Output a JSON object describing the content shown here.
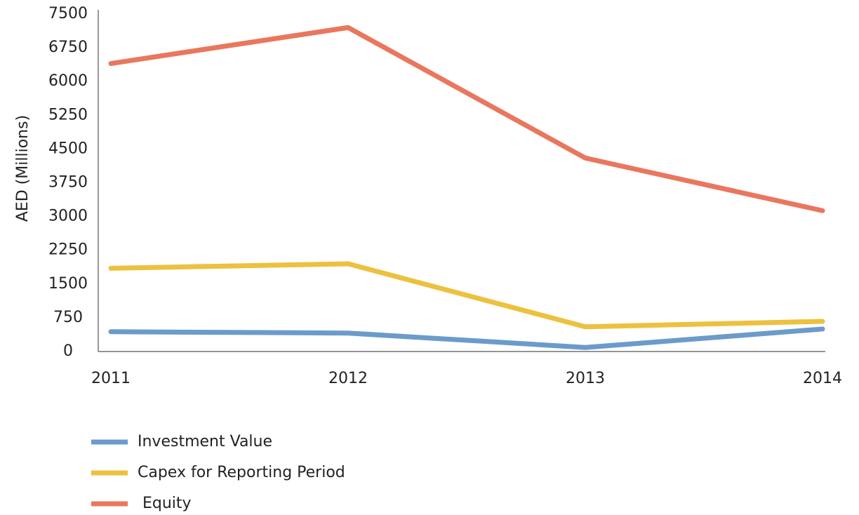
{
  "chart_data": {
    "type": "line",
    "ylabel": "AED (Millions)",
    "categories": [
      "2011",
      "2012",
      "2013",
      "2014"
    ],
    "series": [
      {
        "name": "Investment Value",
        "color": "#6b9bcb",
        "values": [
          440,
          410,
          90,
          500
        ]
      },
      {
        "name": "Capex for Reporting Period",
        "color": "#ecc13f",
        "values": [
          1850,
          1950,
          550,
          670
        ]
      },
      {
        "name": " Equity",
        "color": "#e9775e",
        "values": [
          6400,
          7200,
          4300,
          3130
        ]
      }
    ],
    "ylim": [
      0,
      7500
    ],
    "yticks": [
      0,
      750,
      1500,
      2250,
      3000,
      3750,
      4500,
      5250,
      6000,
      6750,
      7500
    ],
    "grid": false
  }
}
